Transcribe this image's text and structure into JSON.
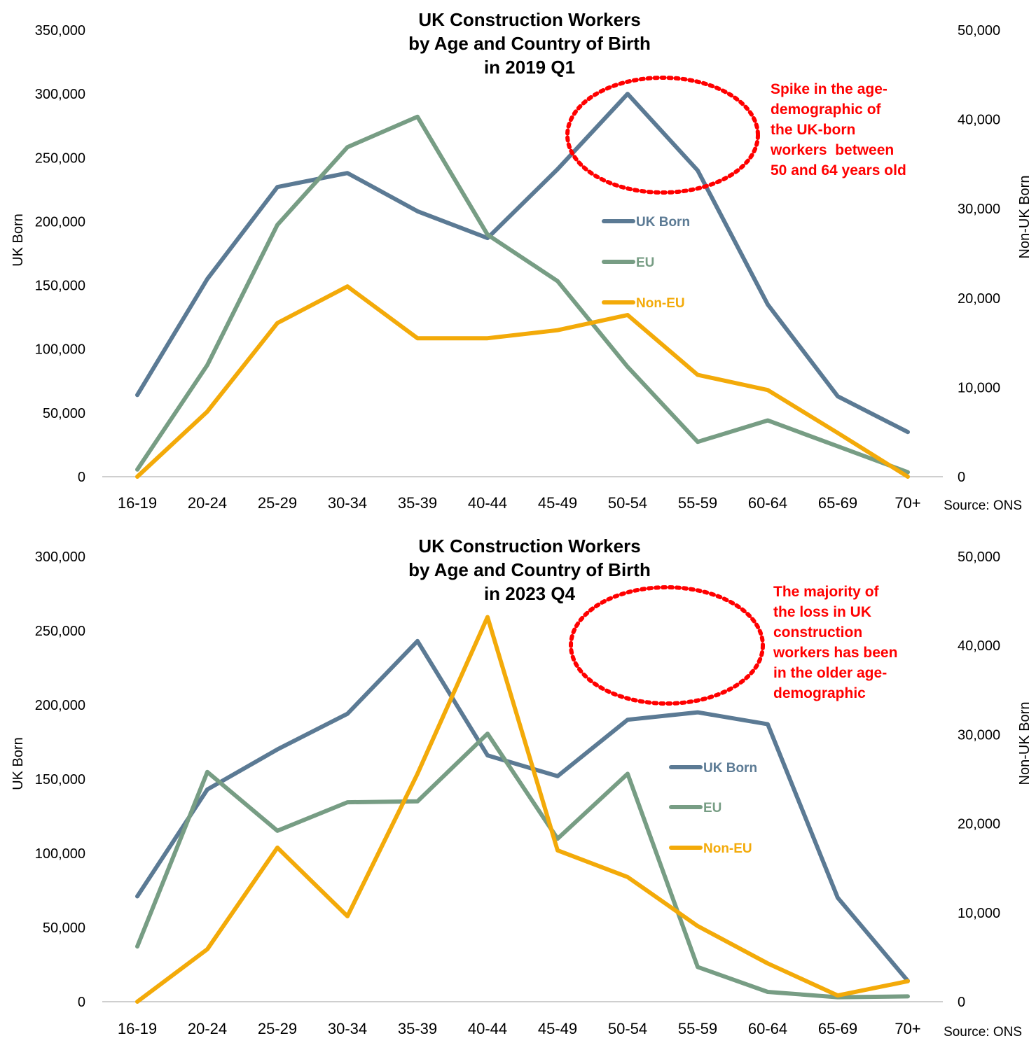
{
  "colors": {
    "uk_born": "#5b7a94",
    "eu": "#779d84",
    "non_eu": "#f3aa09",
    "annotation": "#ff0000",
    "axis": "#bfbfbf"
  },
  "chart_data": [
    {
      "type": "line",
      "title": [
        "UK Construction Workers",
        "by Age and Country of Birth",
        "in 2019 Q1"
      ],
      "categories": [
        "16-19",
        "20-24",
        "25-29",
        "30-34",
        "35-39",
        "40-44",
        "45-49",
        "50-54",
        "55-59",
        "60-64",
        "65-69",
        "70+"
      ],
      "ylabel_left": "UK Born",
      "ylabel_right": "Non-UK Born",
      "ylim_left": [
        0,
        350000
      ],
      "ylim_right": [
        0,
        50000
      ],
      "yticks_left": [
        "0",
        "50,000",
        "100,000",
        "150,000",
        "200,000",
        "250,000",
        "300,000",
        "350,000"
      ],
      "yticks_right": [
        "0",
        "10,000",
        "20,000",
        "30,000",
        "40,000",
        "50,000"
      ],
      "grid": false,
      "legend_position": "center-right",
      "source": "Source: ONS",
      "annotation": [
        "Spike in the age-",
        "demographic of",
        "the UK-born",
        "workers  between",
        "50 and 64 years old"
      ],
      "series": [
        {
          "name": "UK Born",
          "axis": "left",
          "color_key": "uk_born",
          "values": [
            64000,
            155000,
            227000,
            238000,
            208000,
            187000,
            241000,
            300000,
            240000,
            135000,
            63000,
            35000
          ]
        },
        {
          "name": "EU",
          "axis": "right",
          "color_key": "eu",
          "values": [
            800,
            12500,
            28200,
            36900,
            40300,
            27100,
            21900,
            12300,
            3900,
            6300,
            3400,
            500
          ]
        },
        {
          "name": "Non-EU",
          "axis": "right",
          "color_key": "non_eu",
          "values": [
            0,
            7300,
            17200,
            21300,
            15500,
            15500,
            16400,
            18100,
            11400,
            9700,
            4900,
            0
          ]
        }
      ]
    },
    {
      "type": "line",
      "title": [
        "UK Construction Workers",
        "by Age and Country of Birth",
        "in 2023 Q4"
      ],
      "categories": [
        "16-19",
        "20-24",
        "25-29",
        "30-34",
        "35-39",
        "40-44",
        "45-49",
        "50-54",
        "55-59",
        "60-64",
        "65-69",
        "70+"
      ],
      "ylabel_left": "UK Born",
      "ylabel_right": "Non-UK Born",
      "ylim_left": [
        0,
        300000
      ],
      "ylim_right": [
        0,
        50000
      ],
      "yticks_left": [
        "0",
        "50,000",
        "100,000",
        "150,000",
        "200,000",
        "250,000",
        "300,000"
      ],
      "yticks_right": [
        "0",
        "10,000",
        "20,000",
        "30,000",
        "40,000",
        "50,000"
      ],
      "grid": false,
      "legend_position": "center-right",
      "source": "Source: ONS",
      "annotation": [
        "The majority of",
        "the loss in UK",
        "construction",
        "workers has been",
        "in the older age-",
        "demographic"
      ],
      "series": [
        {
          "name": "UK Born",
          "axis": "left",
          "color_key": "uk_born",
          "values": [
            71000,
            143000,
            170000,
            194000,
            243000,
            166000,
            152000,
            190000,
            195000,
            187000,
            70000,
            14000
          ]
        },
        {
          "name": "EU",
          "axis": "right",
          "color_key": "eu",
          "values": [
            6200,
            25800,
            19200,
            22400,
            22500,
            30100,
            18300,
            25600,
            3900,
            1100,
            500,
            600
          ]
        },
        {
          "name": "Non-EU",
          "axis": "right",
          "color_key": "non_eu",
          "values": [
            0,
            5900,
            17300,
            9600,
            25600,
            43200,
            17000,
            14000,
            8500,
            4300,
            700,
            2300
          ]
        }
      ]
    }
  ]
}
